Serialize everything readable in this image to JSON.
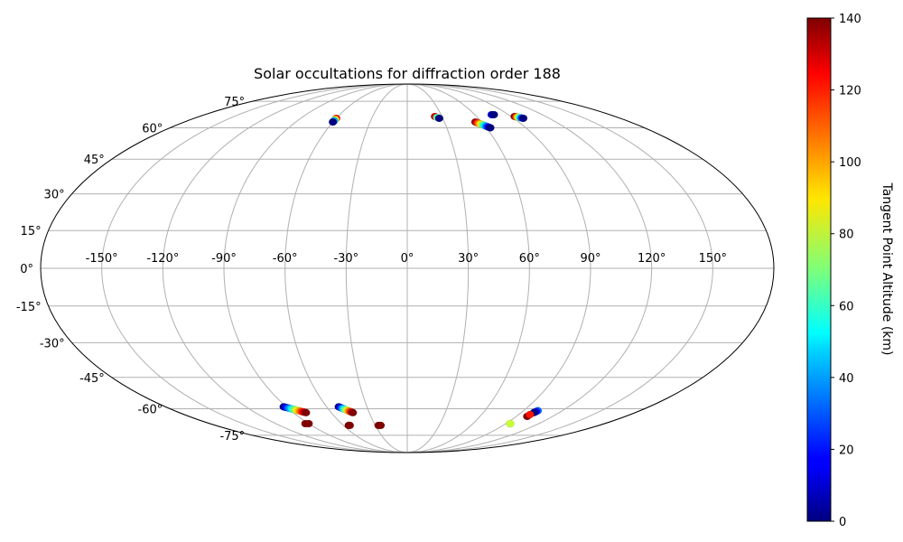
{
  "chart_data": {
    "type": "scatter",
    "projection": "mollweide",
    "title": "Solar occultations for diffraction order 188",
    "longitude_ticks": [
      "-150°",
      "-120°",
      "-90°",
      "-60°",
      "-30°",
      "0°",
      "30°",
      "60°",
      "90°",
      "120°",
      "150°"
    ],
    "latitude_ticks": [
      "75°",
      "60°",
      "45°",
      "30°",
      "15°",
      "0°",
      "-15°",
      "-30°",
      "-45°",
      "-60°",
      "-75°"
    ],
    "grid": true,
    "colorbar": {
      "label": "Tangent Point Altitude (km)",
      "colormap": "jet",
      "range": [
        0,
        140
      ],
      "ticks": [
        "0",
        "20",
        "40",
        "60",
        "80",
        "100",
        "120",
        "140"
      ]
    },
    "tracks": [
      {
        "lon_start": -60,
        "lat_start": 65,
        "alt_start": 120,
        "lon_end": -60,
        "lat_end": 63,
        "alt_end": 0
      },
      {
        "lon_start": 24,
        "lat_start": 66,
        "alt_start": 130,
        "lon_end": 27,
        "lat_end": 65,
        "alt_end": 0
      },
      {
        "lon_start": 55,
        "lat_start": 63,
        "alt_start": 140,
        "lon_end": 63,
        "lat_end": 60,
        "alt_end": 0
      },
      {
        "lon_start": 75,
        "lat_start": 67,
        "alt_start": 10,
        "lon_end": 77,
        "lat_end": 67,
        "alt_end": 0
      },
      {
        "lon_start": 93,
        "lat_start": 66,
        "alt_start": 140,
        "lon_end": 98,
        "lat_end": 65,
        "alt_end": 0
      },
      {
        "lon_start": -92,
        "lat_start": -59,
        "alt_start": 0,
        "lon_end": -80,
        "lat_end": -62,
        "alt_end": 140
      },
      {
        "lon_start": -51,
        "lat_start": -59,
        "alt_start": 0,
        "lon_end": -43,
        "lat_end": -62,
        "alt_end": 140
      },
      {
        "lon_start": -93,
        "lat_start": -68,
        "alt_start": 140,
        "lon_end": -90,
        "lat_end": -68,
        "alt_end": 140
      },
      {
        "lon_start": -55,
        "lat_start": -69,
        "alt_start": 140,
        "lon_end": -54,
        "lat_end": -69,
        "alt_end": 140
      },
      {
        "lon_start": -27,
        "lat_start": -69,
        "alt_start": 140,
        "lon_end": -25,
        "lat_end": -69,
        "alt_end": 140
      },
      {
        "lon_start": 101,
        "lat_start": -61,
        "alt_start": 30,
        "lon_end": 100,
        "lat_end": -62,
        "alt_end": 0
      },
      {
        "lon_start": 99,
        "lat_start": -64,
        "alt_start": 140,
        "lon_end": 99,
        "lat_end": -63,
        "alt_end": 120
      },
      {
        "lon_start": 94,
        "lat_start": -68,
        "alt_start": 80,
        "lon_end": 94,
        "lat_end": -68,
        "alt_end": 80
      }
    ]
  }
}
